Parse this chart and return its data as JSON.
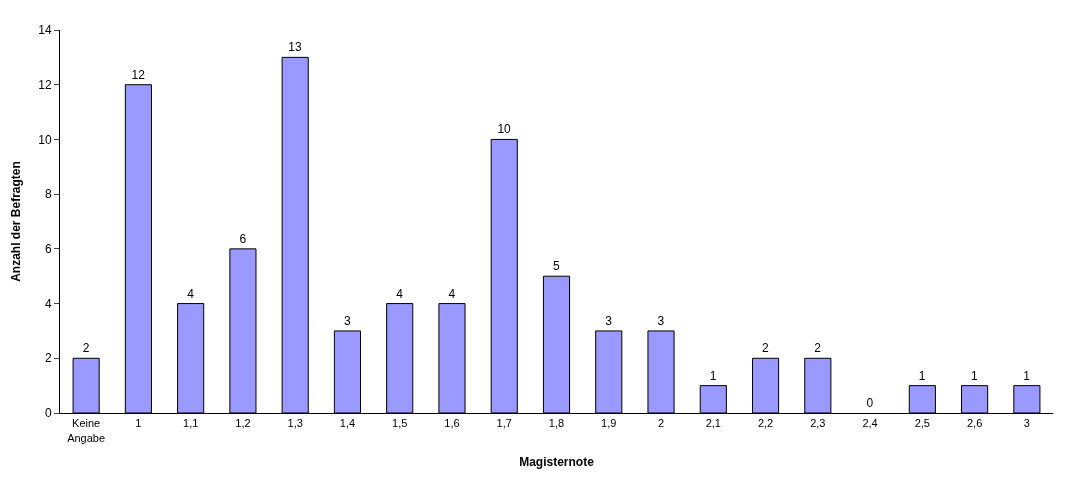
{
  "chart_data": {
    "type": "bar",
    "xlabel": "Magisternote",
    "ylabel": "Anzahl der Befragten",
    "categories": [
      "Keine Angabe",
      "1",
      "1,1",
      "1,2",
      "1,3",
      "1,4",
      "1,5",
      "1,6",
      "1,7",
      "1,8",
      "1,9",
      "2",
      "2,1",
      "2,2",
      "2,3",
      "2,4",
      "2,5",
      "2,6",
      "3"
    ],
    "values": [
      2,
      12,
      4,
      6,
      13,
      3,
      4,
      4,
      10,
      5,
      3,
      3,
      1,
      2,
      2,
      0,
      1,
      1,
      1
    ],
    "color": "#9999ff",
    "ylim": [
      0,
      14
    ],
    "yticks": [
      0,
      2,
      4,
      6,
      8,
      10,
      12,
      14
    ],
    "grid": false,
    "data_labels": true
  }
}
